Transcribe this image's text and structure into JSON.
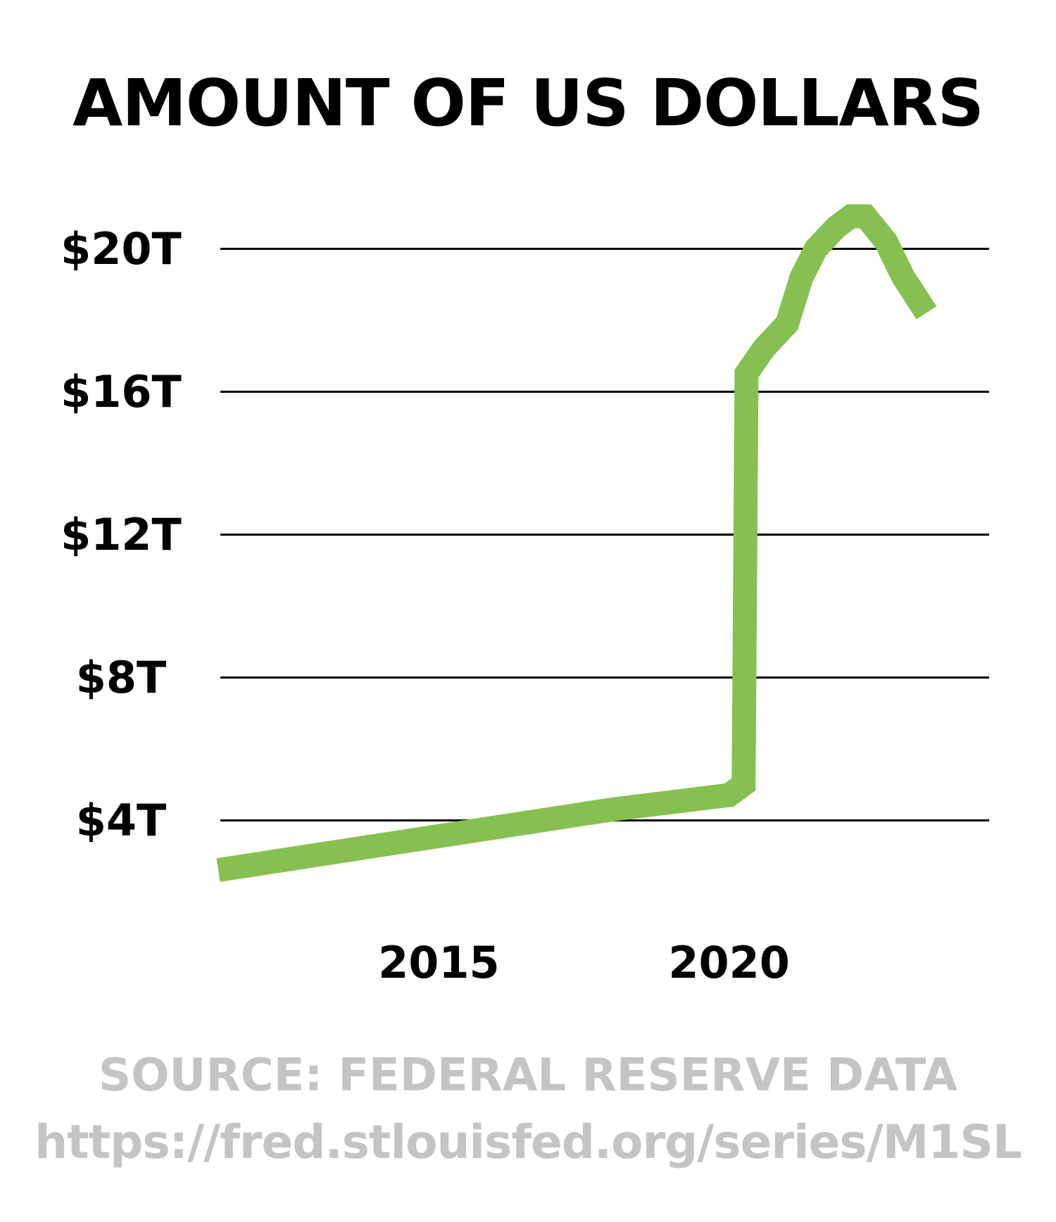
{
  "chart_data": {
    "type": "line",
    "title": "AMOUNT OF US DOLLARS",
    "xlabel": "",
    "ylabel": "",
    "x_ticks": [
      2015,
      2020
    ],
    "y_ticks": [
      4,
      8,
      12,
      16,
      20
    ],
    "y_tick_labels": [
      "$4T",
      "$8T",
      "$12T",
      "$16T",
      "$20T"
    ],
    "xlim": [
      2011.2,
      2023.4
    ],
    "ylim": [
      2.0,
      21.5
    ],
    "grid": true,
    "series": [
      {
        "color": "#86c050",
        "points": [
          [
            2011.2,
            2.6
          ],
          [
            2012.0,
            2.8
          ],
          [
            2013.0,
            3.05
          ],
          [
            2014.0,
            3.3
          ],
          [
            2015.0,
            3.55
          ],
          [
            2016.0,
            3.8
          ],
          [
            2017.0,
            4.05
          ],
          [
            2018.0,
            4.3
          ],
          [
            2019.0,
            4.5
          ],
          [
            2020.0,
            4.7
          ],
          [
            2020.25,
            5.0
          ],
          [
            2020.3,
            16.5
          ],
          [
            2020.6,
            17.2
          ],
          [
            2021.0,
            17.9
          ],
          [
            2021.25,
            19.2
          ],
          [
            2021.5,
            20.0
          ],
          [
            2021.85,
            20.6
          ],
          [
            2022.1,
            20.9
          ],
          [
            2022.35,
            20.9
          ],
          [
            2022.7,
            20.2
          ],
          [
            2023.0,
            19.2
          ],
          [
            2023.4,
            18.2
          ]
        ]
      }
    ]
  },
  "source": {
    "line1": "SOURCE: FEDERAL RESERVE DATA",
    "line2": "https://fred.stlouisfed.org/series/M1SL"
  }
}
